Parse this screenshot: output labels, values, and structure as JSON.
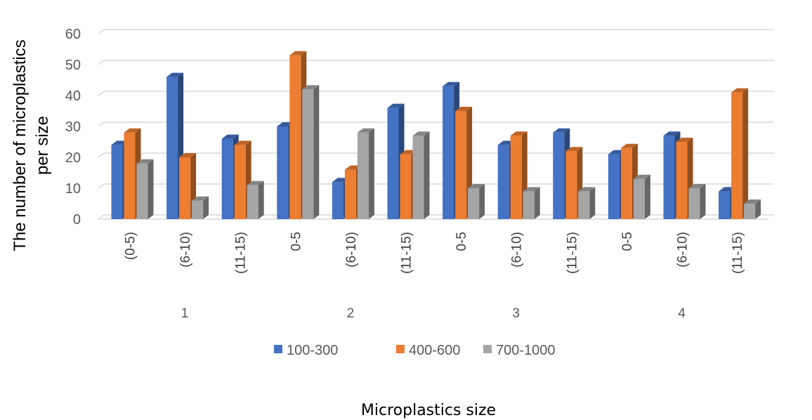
{
  "chart_data": {
    "type": "bar",
    "style": "3d-clustered-column",
    "categories": [
      "(0-5)",
      "(6-10)",
      "(11-15)",
      "0-5",
      "(6-10)",
      "(11-15)",
      "0-5",
      "(6-10)",
      "(11-15)",
      "0-5",
      "(6-10)",
      "(11-15)"
    ],
    "groups": [
      {
        "label": "1",
        "categories": [
          0,
          1,
          2
        ]
      },
      {
        "label": "2",
        "categories": [
          3,
          4,
          5
        ]
      },
      {
        "label": "3",
        "categories": [
          6,
          7,
          8
        ]
      },
      {
        "label": "4",
        "categories": [
          9,
          10,
          11
        ]
      }
    ],
    "series": [
      {
        "name": "100-300",
        "color": "#4472C4",
        "values": [
          24,
          46,
          26,
          30,
          12,
          36,
          43,
          24,
          28,
          21,
          27,
          9
        ]
      },
      {
        "name": "400-600",
        "color": "#ED7D31",
        "values": [
          28,
          20,
          24,
          53,
          16,
          21,
          35,
          27,
          22,
          23,
          25,
          41
        ]
      },
      {
        "name": "700-1000",
        "color": "#A5A5A5",
        "values": [
          18,
          6,
          11,
          42,
          28,
          27,
          10,
          9,
          9,
          13,
          10,
          5
        ]
      }
    ],
    "ylim": [
      0,
      60
    ],
    "yticks": [
      "0",
      "10",
      "20",
      "30",
      "40",
      "50",
      "60"
    ],
    "ylabel_lines": [
      "The number of microplastics",
      "per size"
    ],
    "xlabel": "Microplastics size",
    "title": "",
    "grid": true,
    "legend": "bottom"
  }
}
